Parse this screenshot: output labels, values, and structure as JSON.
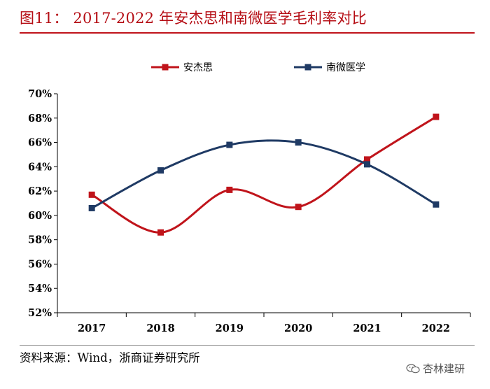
{
  "title": "图11： 2017-2022 年安杰思和南微医学毛利率对比",
  "source": "资料来源：Wind，浙商证券研究所",
  "watermark": "杏林建研",
  "colors": {
    "series_1": "#c0141b",
    "series_2": "#1f3a64",
    "title": "#b50d14"
  },
  "chart_data": {
    "type": "line",
    "title": "",
    "xlabel": "",
    "ylabel": "",
    "categories": [
      "2017",
      "2018",
      "2019",
      "2020",
      "2021",
      "2022"
    ],
    "ylim": [
      52,
      70
    ],
    "yticks": [
      "52%",
      "54%",
      "56%",
      "58%",
      "60%",
      "62%",
      "64%",
      "66%",
      "68%",
      "70%"
    ],
    "legend_position": "top-center",
    "series": [
      {
        "name": "安杰思",
        "values": [
          61.7,
          58.6,
          62.1,
          60.7,
          64.6,
          68.1
        ],
        "smooth": true
      },
      {
        "name": "南微医学",
        "values": [
          60.6,
          63.7,
          65.8,
          66.0,
          64.2,
          60.9
        ],
        "smooth": true
      }
    ]
  }
}
